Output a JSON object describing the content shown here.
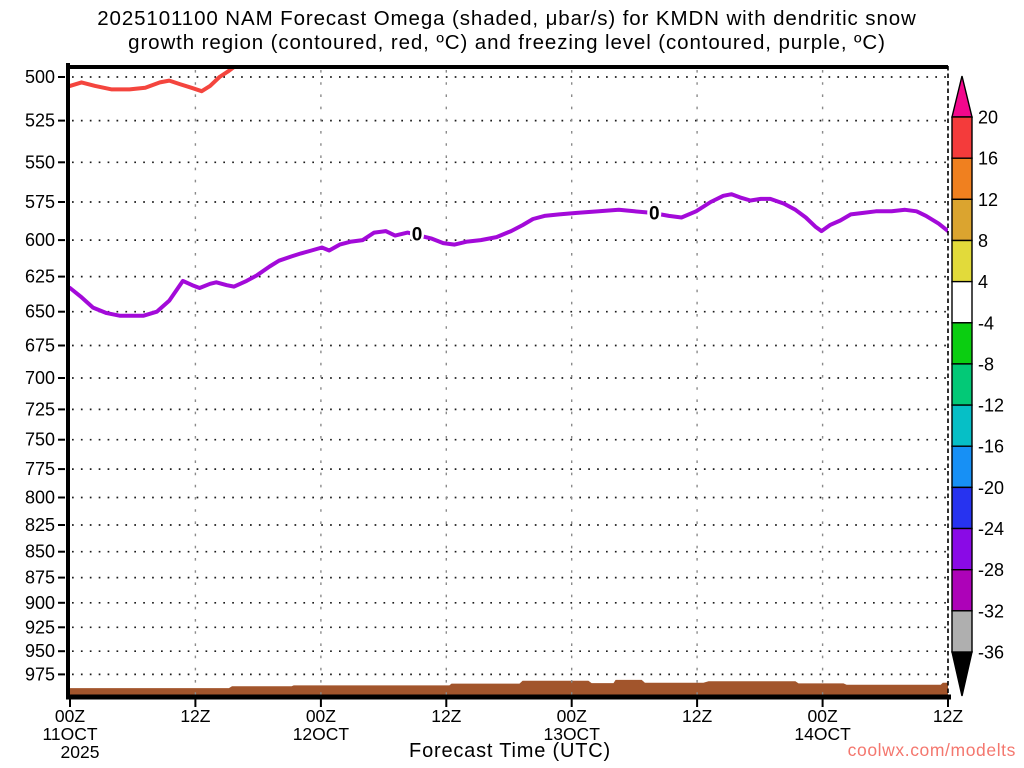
{
  "chart_data": {
    "type": "line",
    "title_lines": [
      "2025101100 NAM Forecast Omega (shaded, μbar/s) for KMDN with dendritic snow",
      "growth region (contoured, red, ºC) and freezing level (contoured, purple, ºC)"
    ],
    "xlabel": "Forecast Time (UTC)",
    "y_axis": {
      "unit": "hPa",
      "scale": "log-pressure",
      "tick_levels": [
        500,
        525,
        550,
        575,
        600,
        625,
        650,
        675,
        700,
        725,
        750,
        775,
        800,
        825,
        850,
        875,
        900,
        925,
        950,
        975
      ],
      "top_pressure": 494,
      "bottom_pressure": 1000
    },
    "x_axis": {
      "unit": "hours since 2025-10-11 00Z",
      "range_hours": [
        0,
        84
      ],
      "ticks": [
        {
          "h": 0,
          "label": "00Z",
          "date": "11OCT",
          "year": "2025"
        },
        {
          "h": 12,
          "label": "12Z"
        },
        {
          "h": 24,
          "label": "00Z",
          "date": "12OCT"
        },
        {
          "h": 36,
          "label": "12Z"
        },
        {
          "h": 48,
          "label": "00Z",
          "date": "13OCT"
        },
        {
          "h": 60,
          "label": "12Z"
        },
        {
          "h": 72,
          "label": "00Z",
          "date": "14OCT"
        },
        {
          "h": 84,
          "label": "12Z"
        }
      ]
    },
    "series": [
      {
        "name": "dendritic-growth-region-contour",
        "color_key": "red_contour",
        "points": [
          [
            0,
            505
          ],
          [
            1.1,
            503
          ],
          [
            2.4,
            505
          ],
          [
            4,
            507
          ],
          [
            5.7,
            507
          ],
          [
            7.2,
            506
          ],
          [
            8.6,
            503
          ],
          [
            9.5,
            502
          ],
          [
            10.5,
            504
          ],
          [
            11.6,
            506
          ],
          [
            12.6,
            508
          ],
          [
            13.4,
            505
          ],
          [
            14.3,
            500
          ],
          [
            15.1,
            497
          ],
          [
            15.8,
            494
          ],
          [
            16.5,
            492
          ],
          [
            17.2,
            491
          ]
        ]
      },
      {
        "name": "freezing-level-contour",
        "color_key": "purple_contour",
        "points": [
          [
            0,
            633
          ],
          [
            1,
            639
          ],
          [
            2.2,
            647
          ],
          [
            3.5,
            651
          ],
          [
            4.8,
            653
          ],
          [
            7,
            653
          ],
          [
            8.3,
            650
          ],
          [
            9.5,
            642
          ],
          [
            10.8,
            628
          ],
          [
            11.7,
            631
          ],
          [
            12.4,
            633
          ],
          [
            13.4,
            630
          ],
          [
            14,
            629
          ],
          [
            15,
            631
          ],
          [
            15.7,
            632
          ],
          [
            16.9,
            628
          ],
          [
            17.9,
            624
          ],
          [
            19.1,
            618
          ],
          [
            20,
            614
          ],
          [
            21.2,
            611
          ],
          [
            22.1,
            609
          ],
          [
            23.1,
            607
          ],
          [
            24.1,
            605
          ],
          [
            24.8,
            607
          ],
          [
            25.8,
            603
          ],
          [
            26.9,
            601
          ],
          [
            28,
            600
          ],
          [
            29.1,
            595
          ],
          [
            30.2,
            594
          ],
          [
            31.1,
            597
          ],
          [
            32.3,
            595
          ],
          [
            33.4,
            597
          ],
          [
            34.6,
            599
          ],
          [
            35.7,
            602
          ],
          [
            36.8,
            603
          ],
          [
            38,
            601
          ],
          [
            39.3,
            600
          ],
          [
            40.8,
            598
          ],
          [
            42.2,
            594
          ],
          [
            43.3,
            590
          ],
          [
            44.3,
            586
          ],
          [
            45.4,
            584
          ],
          [
            46.8,
            583
          ],
          [
            48.5,
            582
          ],
          [
            50.6,
            581
          ],
          [
            52.5,
            580
          ],
          [
            54,
            581
          ],
          [
            55.7,
            582
          ],
          [
            57.3,
            584
          ],
          [
            58.5,
            585
          ],
          [
            59.9,
            581
          ],
          [
            61.3,
            575
          ],
          [
            62.5,
            571
          ],
          [
            63.3,
            570
          ],
          [
            64.1,
            572
          ],
          [
            65.1,
            574
          ],
          [
            66.1,
            573
          ],
          [
            67,
            573
          ],
          [
            68.3,
            576
          ],
          [
            69.4,
            580
          ],
          [
            70.4,
            585
          ],
          [
            71.3,
            591
          ],
          [
            71.9,
            594
          ],
          [
            72.7,
            590
          ],
          [
            73.7,
            587
          ],
          [
            74.7,
            583
          ],
          [
            75.9,
            582
          ],
          [
            77.1,
            581
          ],
          [
            78.6,
            581
          ],
          [
            79.9,
            580
          ],
          [
            81,
            581
          ],
          [
            81.9,
            584
          ],
          [
            83.1,
            589
          ],
          [
            84,
            594
          ]
        ],
        "point_labels": [
          {
            "h": 33.2,
            "p": 596,
            "text": "0"
          },
          {
            "h": 55.9,
            "p": 582,
            "text": "0"
          }
        ]
      }
    ],
    "terrain": {
      "name": "surface-terrain",
      "points": [
        [
          0,
          990
        ],
        [
          15.2,
          990
        ],
        [
          15.5,
          988
        ],
        [
          21.2,
          988
        ],
        [
          21.4,
          987
        ],
        [
          36.3,
          987
        ],
        [
          36.5,
          985
        ],
        [
          43,
          985
        ],
        [
          43.3,
          982
        ],
        [
          49.6,
          982
        ],
        [
          49.9,
          984.5
        ],
        [
          52,
          984.5
        ],
        [
          52.2,
          981
        ],
        [
          54.7,
          981
        ],
        [
          55,
          984
        ],
        [
          60.6,
          984
        ],
        [
          61.1,
          982.5
        ],
        [
          69.4,
          982.5
        ],
        [
          69.7,
          984.8
        ],
        [
          74,
          984.8
        ],
        [
          74.3,
          986.3
        ],
        [
          83.3,
          986.3
        ],
        [
          83.5,
          984
        ],
        [
          84,
          984
        ]
      ]
    },
    "colorbar": {
      "unit": "μbar/s",
      "tick_values": [
        20,
        16,
        12,
        8,
        4,
        -4,
        -8,
        -12,
        -16,
        -20,
        -24,
        -28,
        -32,
        -36
      ],
      "segment_colors": [
        "#f43b3b",
        "#f0801f",
        "#dba42f",
        "#e2da3a",
        "#ffffff",
        "#0bce11",
        "#03c977",
        "#06bfc6",
        "#1790f5",
        "#2733f0",
        "#8a0ae6",
        "#ad02b8",
        "#afafaf"
      ],
      "over_color": "#f2078c",
      "under_color": "#000000"
    }
  },
  "watermark": {
    "text": "coolwx.com/modelts",
    "color": "#f4776e"
  },
  "colors": {
    "red_contour": "#f4453e",
    "purple_contour": "#a30ad9",
    "terrain": "#a2552c",
    "grid": "#1c1c1c",
    "vgrid": "#8a8a8a",
    "axis": "#000000"
  }
}
